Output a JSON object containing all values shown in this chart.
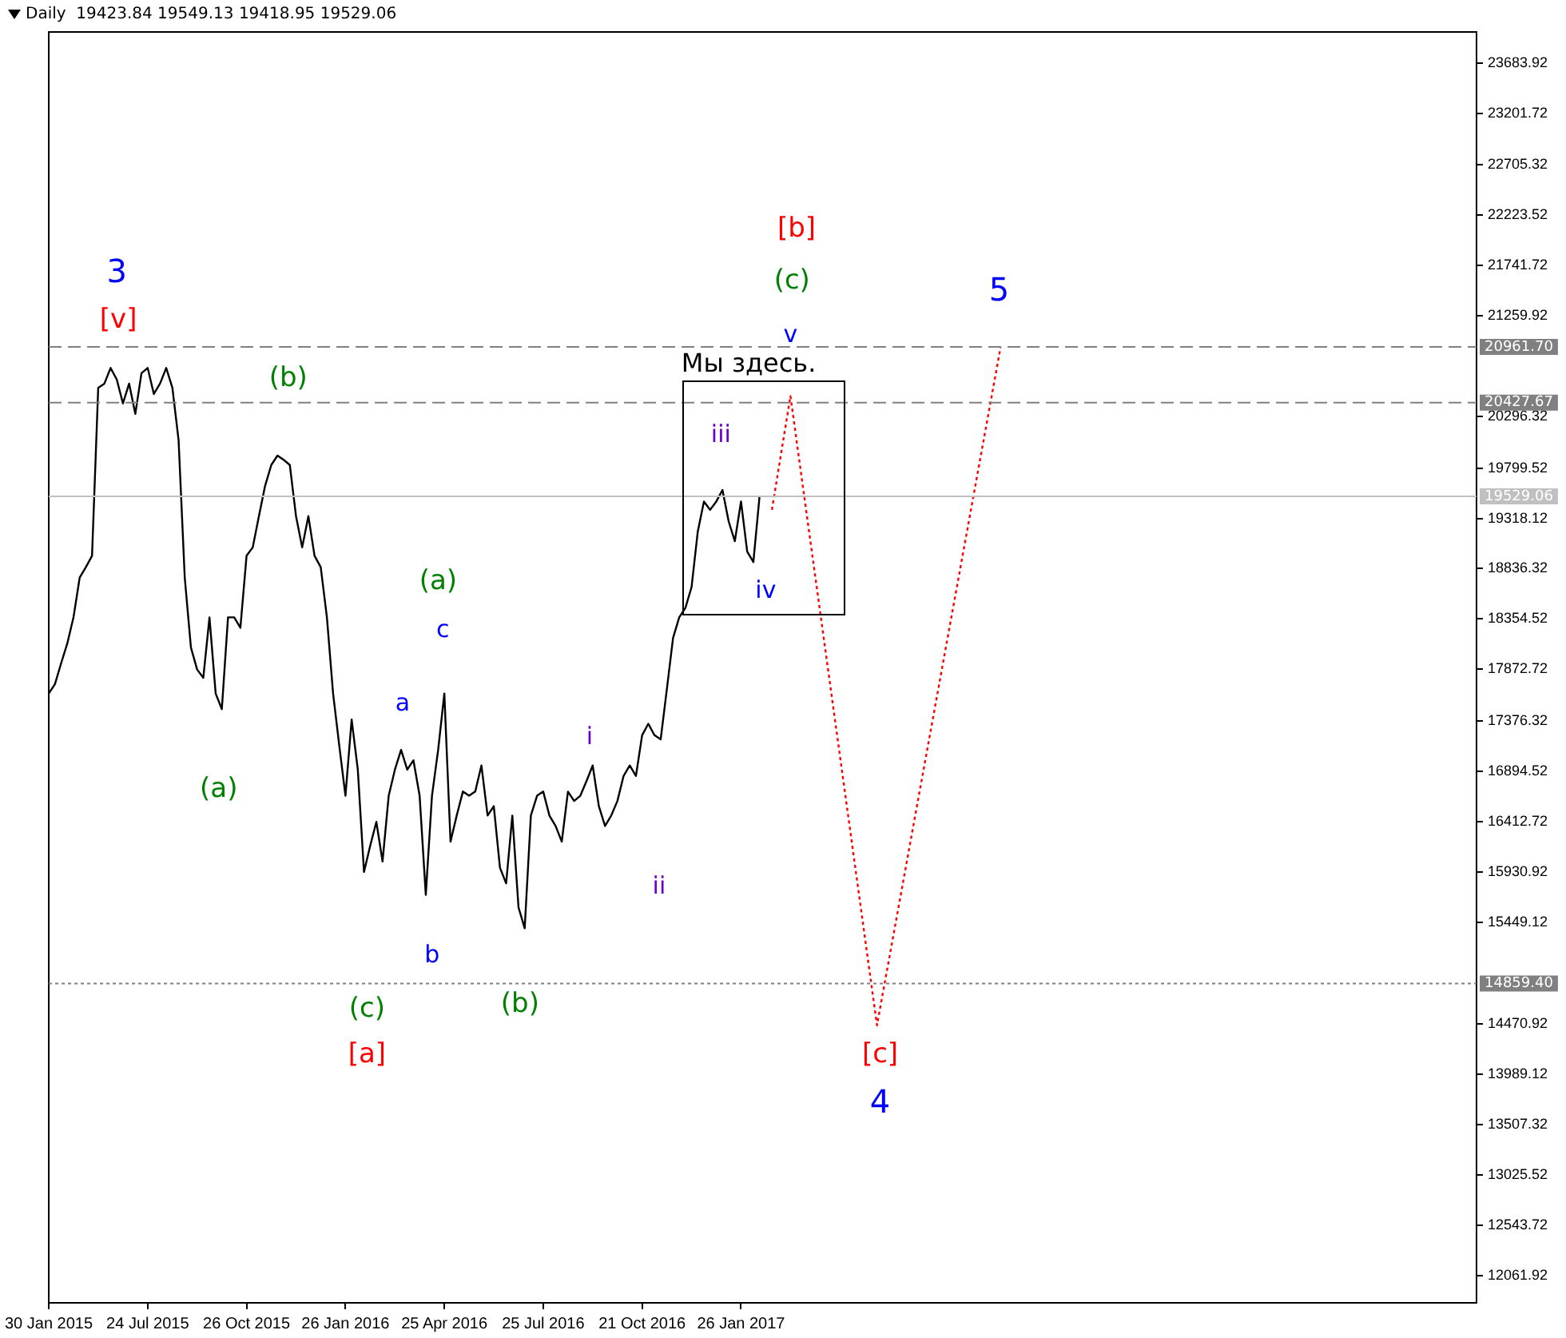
{
  "chart_data": {
    "type": "line",
    "title": "Daily  19423.84 19549.13 19418.95 19529.06",
    "categories": [
      "30 Jan 2015",
      null,
      null,
      null,
      null,
      null,
      null,
      null,
      null,
      null,
      null,
      null,
      null,
      null,
      null,
      null,
      "24 Jul 2015",
      null,
      null,
      null,
      null,
      null,
      null,
      null,
      null,
      null,
      null,
      null,
      null,
      null,
      null,
      null,
      "26 Oct 2015",
      null,
      null,
      null,
      null,
      null,
      null,
      null,
      null,
      null,
      null,
      null,
      null,
      null,
      null,
      null,
      "26 Jan 2016",
      null,
      null,
      null,
      null,
      null,
      null,
      null,
      null,
      null,
      null,
      null,
      null,
      null,
      null,
      null,
      "25 Apr 2016",
      null,
      null,
      null,
      null,
      null,
      null,
      null,
      null,
      null,
      null,
      null,
      null,
      null,
      null,
      null,
      "25 Jul 2016",
      null,
      null,
      null,
      null,
      null,
      null,
      null,
      null,
      null,
      null,
      null,
      null,
      null,
      null,
      null,
      "21 Oct 2016",
      null,
      null,
      null,
      null,
      null,
      null,
      null,
      null,
      null,
      null,
      null,
      null,
      null,
      null,
      null,
      "26 Jan 2017",
      null,
      null,
      null,
      null,
      null,
      null,
      null,
      null,
      null,
      null,
      null,
      null,
      null,
      null,
      null,
      null,
      null,
      null,
      null,
      null,
      null,
      null,
      null,
      null,
      null,
      null,
      null,
      null,
      null,
      null,
      null,
      null,
      null,
      null,
      null,
      null,
      null,
      null,
      null,
      null,
      null,
      null,
      null,
      null,
      null,
      null,
      null,
      null,
      null,
      null,
      null,
      null,
      null,
      null,
      null,
      null,
      null,
      null,
      null,
      null,
      null,
      null,
      null,
      null,
      null,
      null,
      null,
      null,
      null,
      null,
      null,
      null,
      null,
      null,
      null,
      null,
      null,
      null,
      null,
      null,
      null,
      null,
      null,
      null,
      null,
      null,
      null,
      null,
      null,
      null,
      null,
      null,
      null,
      null,
      null,
      null,
      null,
      null,
      null,
      null,
      null,
      null,
      null,
      null,
      null,
      null,
      null,
      null,
      null,
      null,
      null,
      null,
      null,
      null,
      null,
      null,
      null,
      null,
      null
    ],
    "series": [
      {
        "color": "#000000",
        "line_style": "solid",
        "values": [
          17640,
          17730,
          17930,
          18120,
          18370,
          18750,
          18850,
          18960,
          20570,
          20610,
          20760,
          20650,
          20420,
          20610,
          20320,
          20710,
          20760,
          20510,
          20610,
          20760,
          20570,
          20070,
          18750,
          18080,
          17870,
          17790,
          18370,
          17640,
          17490,
          18370,
          18370,
          18270,
          18960,
          19040,
          19340,
          19630,
          19830,
          19920,
          19880,
          19830,
          19340,
          19040,
          19340,
          18960,
          18850,
          18370,
          17640,
          17140,
          16660,
          17390,
          16910,
          15930,
          16180,
          16410,
          16030,
          16660,
          16910,
          17100,
          16910,
          17000,
          16660,
          15710,
          16660,
          17100,
          17640,
          16220,
          16470,
          16700,
          16660,
          16700,
          16950,
          16470,
          16560,
          15970,
          15820,
          16470,
          15590,
          15390,
          16470,
          16660,
          16700,
          16470,
          16370,
          16220,
          16700,
          16610,
          16660,
          16800,
          16950,
          16560,
          16370,
          16470,
          16610,
          16850,
          16950,
          16850,
          17240,
          17350,
          17240,
          17200,
          17680,
          18170,
          18370,
          18460,
          18660,
          19190,
          19480,
          19400,
          19480,
          19590,
          19290,
          19100,
          19480,
          19000,
          18900,
          19530,
          null,
          null,
          null,
          null,
          null,
          null,
          null,
          null,
          null,
          null,
          null,
          null,
          null,
          null,
          null,
          null,
          null,
          null,
          null,
          null,
          null,
          null,
          null,
          null,
          null,
          null,
          null,
          null,
          null,
          null,
          null,
          null,
          null,
          null,
          null,
          null,
          null,
          null,
          null,
          null,
          null,
          null,
          null,
          null,
          null,
          null,
          null,
          null,
          null,
          null,
          null,
          null,
          null,
          null,
          null,
          null,
          null,
          null,
          null,
          null,
          null,
          null,
          null,
          null,
          null,
          null,
          null,
          null,
          null,
          null,
          null,
          null,
          null,
          null,
          null,
          null,
          null,
          null,
          null,
          null,
          null,
          null,
          null,
          null,
          null,
          null,
          null,
          null,
          null,
          null,
          null,
          null,
          null,
          null,
          null,
          null,
          null,
          null,
          null,
          null,
          null,
          null,
          null,
          null,
          null,
          null,
          null,
          null,
          null,
          null,
          null,
          null,
          null,
          null,
          null,
          null
        ]
      },
      {
        "color": "#ff0000",
        "line_style": "dotted",
        "values": [
          null,
          null,
          null,
          null,
          null,
          null,
          null,
          null,
          null,
          null,
          null,
          null,
          null,
          null,
          null,
          null,
          null,
          null,
          null,
          null,
          null,
          null,
          null,
          null,
          null,
          null,
          null,
          null,
          null,
          null,
          null,
          null,
          null,
          null,
          null,
          null,
          null,
          null,
          null,
          null,
          null,
          null,
          null,
          null,
          null,
          null,
          null,
          null,
          null,
          null,
          null,
          null,
          null,
          null,
          null,
          null,
          null,
          null,
          null,
          null,
          null,
          null,
          null,
          null,
          null,
          null,
          null,
          null,
          null,
          null,
          null,
          null,
          null,
          null,
          null,
          null,
          null,
          null,
          null,
          null,
          null,
          null,
          null,
          null,
          null,
          null,
          null,
          null,
          null,
          null,
          null,
          null,
          null,
          null,
          null,
          null,
          null,
          null,
          null,
          null,
          null,
          null,
          null,
          null,
          null,
          null,
          null,
          null,
          null,
          null,
          null,
          null,
          null,
          null,
          null,
          null,
          null,
          19400,
          null,
          null,
          20490,
          null,
          null,
          null,
          null,
          null,
          null,
          null,
          null,
          null,
          null,
          null,
          null,
          null,
          14460,
          null,
          null,
          null,
          null,
          null,
          null,
          null,
          null,
          null,
          null,
          null,
          null,
          null,
          null,
          null,
          null,
          null,
          null,
          null,
          20960,
          null,
          null,
          null,
          null,
          null,
          null,
          null,
          null,
          null,
          null,
          null,
          null,
          null,
          null,
          null,
          null,
          null,
          null,
          null,
          null,
          null,
          null,
          null,
          null,
          null,
          null,
          null,
          null,
          null,
          null,
          null,
          null,
          null,
          null,
          null,
          null,
          null,
          null,
          null,
          null,
          null,
          null,
          null,
          null,
          null,
          null,
          null,
          null,
          null,
          null,
          null,
          null,
          null,
          null,
          null,
          null,
          null,
          null,
          null,
          null,
          null,
          null,
          null,
          null,
          null,
          null,
          null,
          null,
          null,
          null,
          null,
          null,
          null,
          null,
          null,
          null,
          null
        ]
      }
    ],
    "ylim": [
      11800,
      23980
    ],
    "yticks": [
      23683.92,
      23201.72,
      22705.32,
      22223.52,
      21741.72,
      21259.92,
      20296.32,
      19799.52,
      19318.12,
      18836.32,
      18354.52,
      17872.72,
      17376.32,
      16894.52,
      16412.72,
      15930.92,
      15449.12,
      14470.92,
      13989.12,
      13507.32,
      13025.52,
      12543.72,
      12061.92
    ],
    "marker": "none",
    "ref_lines": [
      {
        "axis": "y",
        "value": 20961.7,
        "label": "20961.70",
        "color": "#808080",
        "line_style": "dashed"
      },
      {
        "axis": "y",
        "value": 20427.67,
        "label": "20427.67",
        "color": "#808080",
        "line_style": "dashed"
      },
      {
        "axis": "y",
        "value": 19529.06,
        "label": "19529.06",
        "color": "#c0c0c0",
        "line_style": "solid"
      },
      {
        "axis": "y",
        "value": 14859.4,
        "label": "14859.40",
        "color": "#808080",
        "line_style": "dotted"
      }
    ],
    "annotations": [
      "3",
      "[v]",
      "(b)",
      "(a)",
      "c",
      "a",
      "(a)",
      "b",
      "(c)",
      "[a]",
      "(b)",
      "i",
      "ii",
      "iii",
      "iv",
      "v",
      "(c)",
      "[b]",
      "Мы здесь.",
      "5",
      "[c]",
      "4"
    ]
  }
}
